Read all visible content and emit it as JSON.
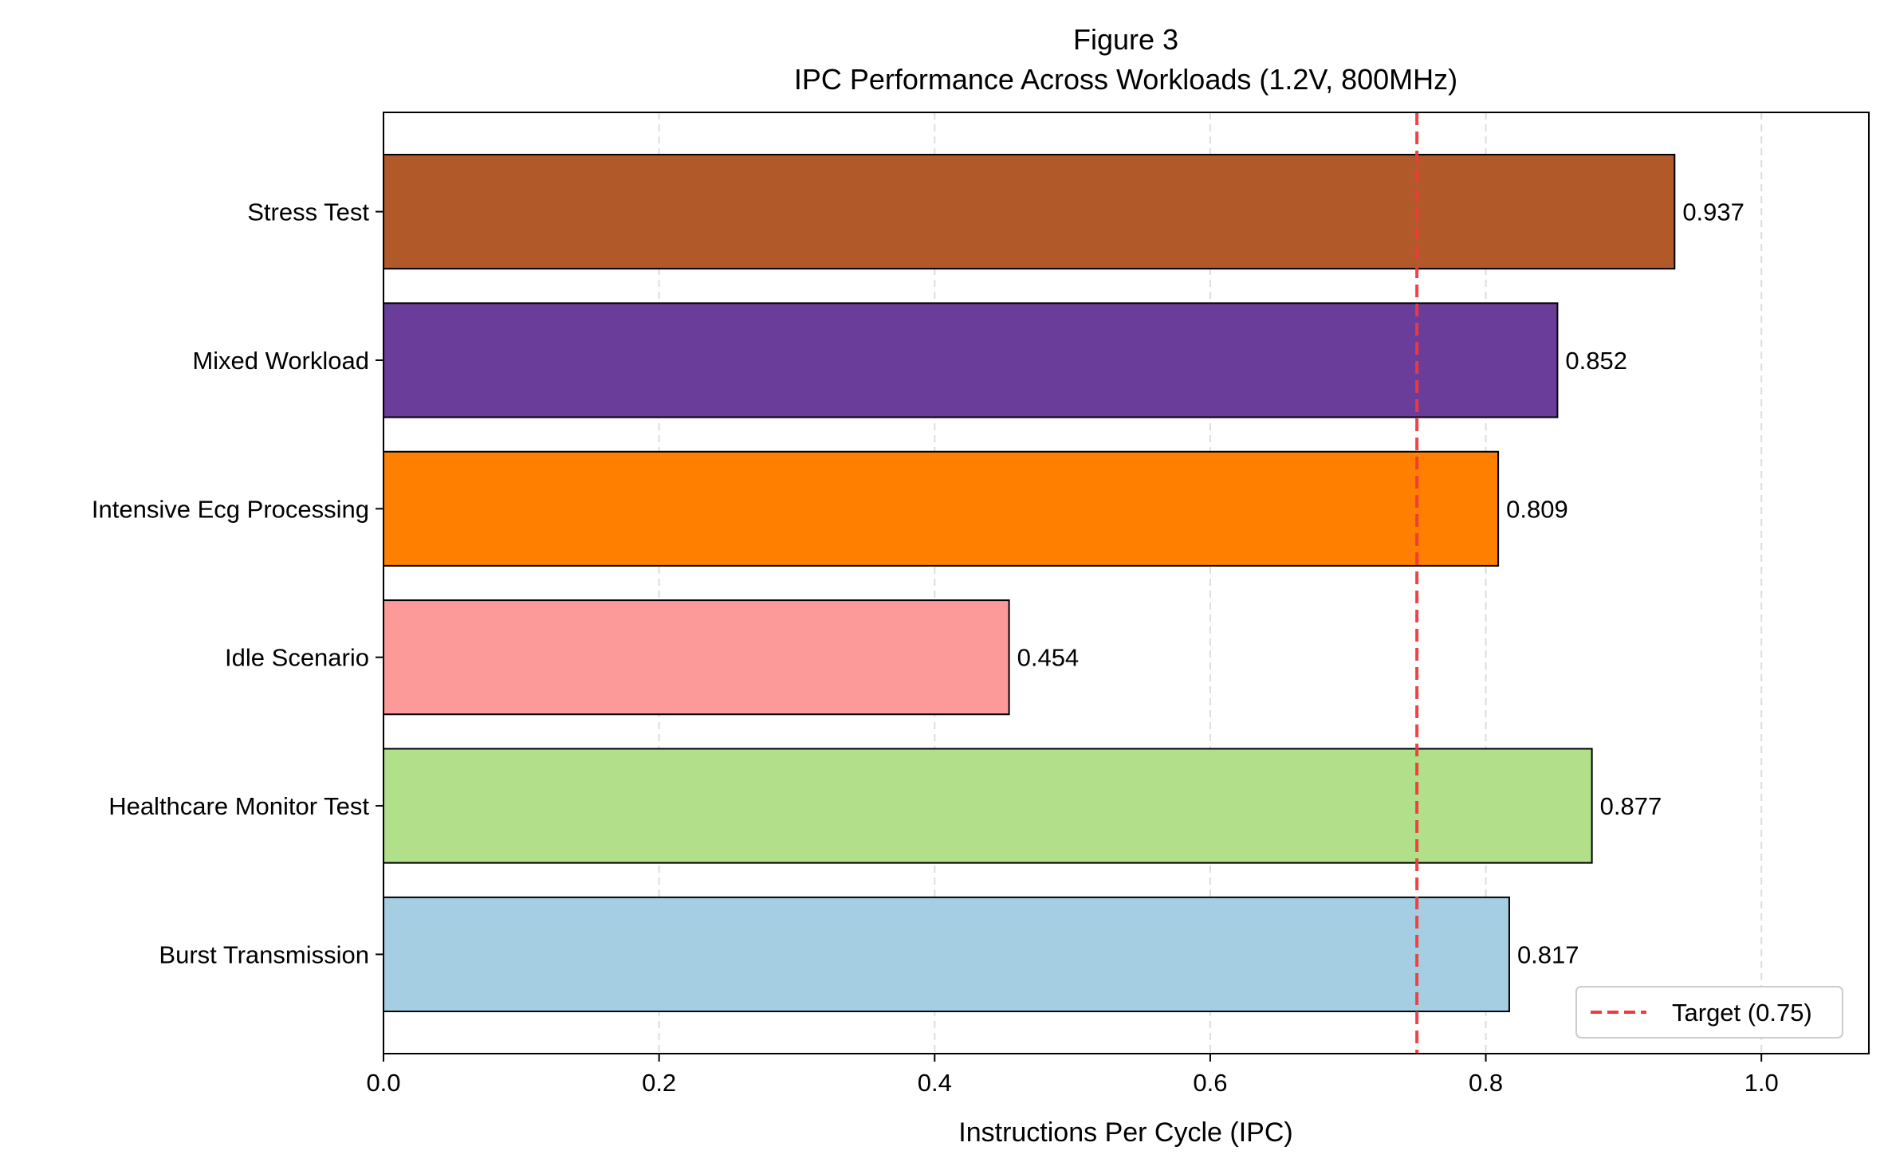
{
  "chart_data": {
    "type": "bar",
    "orientation": "horizontal",
    "title": "Figure 3",
    "subtitle": "IPC Performance Across Workloads (1.2V, 800MHz)",
    "xlabel": "Instructions Per Cycle (IPC)",
    "ylabel": "",
    "xlim": [
      0.0,
      1.078
    ],
    "xticks": [
      0.0,
      0.2,
      0.4,
      0.6,
      0.8,
      1.0
    ],
    "xtick_labels": [
      "0.0",
      "0.2",
      "0.4",
      "0.6",
      "0.8",
      "1.0"
    ],
    "grid": "x-dashed",
    "categories": [
      "Burst Transmission",
      "Healthcare Monitor Test",
      "Idle Scenario",
      "Intensive Ecg Processing",
      "Mixed Workload",
      "Stress Test"
    ],
    "values": [
      0.817,
      0.877,
      0.454,
      0.809,
      0.852,
      0.937
    ],
    "value_labels": [
      "0.817",
      "0.877",
      "0.454",
      "0.809",
      "0.852",
      "0.937"
    ],
    "colors": [
      "#a6cee3",
      "#b2df8a",
      "#fb9a99",
      "#ff7f00",
      "#6a3d9a",
      "#b15928"
    ],
    "reference_line": {
      "value": 0.75,
      "label": "Target (0.75)",
      "color": "#ef3b3b",
      "style": "dashed"
    },
    "legend_position": "bottom-right"
  }
}
